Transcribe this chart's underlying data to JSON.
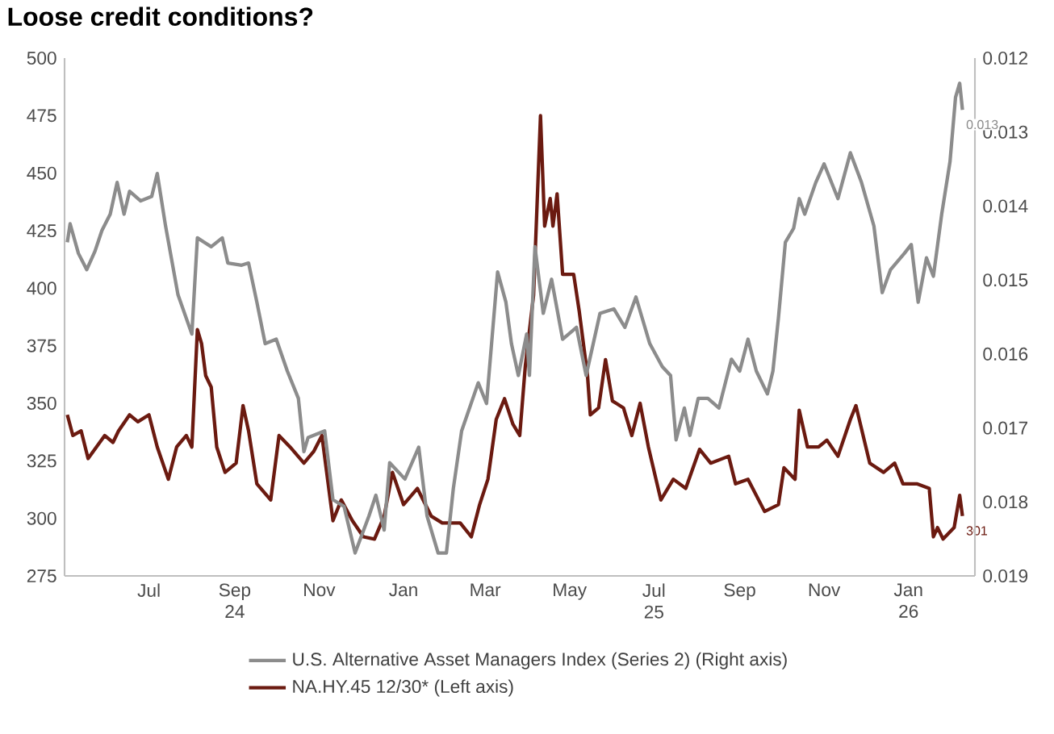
{
  "chart_data": {
    "type": "line",
    "title": "Loose credit conditions?",
    "xlim": [
      "2024-05-01",
      "2026-02-18"
    ],
    "xticks": [
      {
        "value": "2024-07-01",
        "label": "Jul"
      },
      {
        "value": "2024-09-01",
        "label": "Sep 24"
      },
      {
        "value": "2024-11-01",
        "label": "Nov"
      },
      {
        "value": "2025-01-01",
        "label": "Jan"
      },
      {
        "value": "2025-03-01",
        "label": "Mar"
      },
      {
        "value": "2025-05-01",
        "label": "May"
      },
      {
        "value": "2025-07-01",
        "label": "Jul 25"
      },
      {
        "value": "2025-09-01",
        "label": "Sep"
      },
      {
        "value": "2025-11-01",
        "label": "Nov"
      },
      {
        "value": "2026-01-01",
        "label": "Jan 26"
      }
    ],
    "ylim": [
      275,
      500
    ],
    "yticks": [
      275,
      300,
      325,
      350,
      375,
      400,
      425,
      450,
      475,
      500
    ],
    "y2lim": [
      0.019,
      0.012
    ],
    "y2ticks": [
      0.012,
      0.013,
      0.014,
      0.015,
      0.016,
      0.017,
      0.018,
      0.019
    ],
    "legend": "bottom",
    "series": [
      {
        "name": "U.S. Alternative Asset Managers Index (Series 2) (Right axis)",
        "color": "#8c8c8c",
        "axis": "y2",
        "x": [
          "2024-05-03",
          "2024-05-05",
          "2024-05-11",
          "2024-05-17",
          "2024-05-23",
          "2024-05-28",
          "2024-06-03",
          "2024-06-08",
          "2024-06-13",
          "2024-06-17",
          "2024-06-25",
          "2024-07-03",
          "2024-07-07",
          "2024-07-13",
          "2024-07-22",
          "2024-08-01",
          "2024-08-05",
          "2024-08-15",
          "2024-08-23",
          "2024-08-27",
          "2024-09-06",
          "2024-09-11",
          "2024-09-17",
          "2024-09-23",
          "2024-10-01",
          "2024-10-09",
          "2024-10-17",
          "2024-10-21",
          "2024-10-24",
          "2024-11-05",
          "2024-11-11",
          "2024-11-19",
          "2024-11-27",
          "2024-12-07",
          "2024-12-12",
          "2024-12-18",
          "2024-12-22",
          "2025-01-02",
          "2025-01-12",
          "2025-01-18",
          "2025-01-26",
          "2025-02-01",
          "2025-02-06",
          "2025-02-12",
          "2025-02-24",
          "2025-03-02",
          "2025-03-10",
          "2025-03-16",
          "2025-03-20",
          "2025-03-25",
          "2025-03-31",
          "2025-04-02",
          "2025-04-06",
          "2025-04-12",
          "2025-04-18",
          "2025-04-26",
          "2025-05-06",
          "2025-05-13",
          "2025-05-23",
          "2025-06-02",
          "2025-06-10",
          "2025-06-18",
          "2025-06-28",
          "2025-07-07",
          "2025-07-13",
          "2025-07-17",
          "2025-07-23",
          "2025-07-27",
          "2025-08-02",
          "2025-08-09",
          "2025-08-17",
          "2025-08-26",
          "2025-09-01",
          "2025-09-07",
          "2025-09-13",
          "2025-09-21",
          "2025-09-25",
          "2025-09-29",
          "2025-10-04",
          "2025-10-10",
          "2025-10-14",
          "2025-10-18",
          "2025-10-26",
          "2025-11-01",
          "2025-11-11",
          "2025-11-20",
          "2025-11-28",
          "2025-12-07",
          "2025-12-13",
          "2025-12-19",
          "2025-12-29",
          "2026-01-03",
          "2026-01-08",
          "2026-01-14",
          "2026-01-19",
          "2026-01-25",
          "2026-01-31",
          "2026-02-04",
          "2026-02-07",
          "2026-02-09"
        ],
        "values": [
          0.01449,
          0.01424,
          0.01464,
          0.01486,
          0.01461,
          0.01433,
          0.01411,
          0.01368,
          0.01411,
          0.0138,
          0.01393,
          0.01387,
          0.01356,
          0.01427,
          0.0152,
          0.01573,
          0.01443,
          0.01455,
          0.01443,
          0.01477,
          0.0148,
          0.01477,
          0.0153,
          0.01586,
          0.0158,
          0.01623,
          0.0166,
          0.01732,
          0.01713,
          0.01704,
          0.01797,
          0.01806,
          0.01869,
          0.01819,
          0.01791,
          0.01838,
          0.01747,
          0.01769,
          0.01726,
          0.01819,
          0.01869,
          0.01869,
          0.01782,
          0.01704,
          0.01639,
          0.01667,
          0.01489,
          0.0153,
          0.01586,
          0.01629,
          0.01573,
          0.01629,
          0.01455,
          0.01545,
          0.01499,
          0.0158,
          0.01564,
          0.01629,
          0.01545,
          0.01539,
          0.01564,
          0.01523,
          0.01586,
          0.01617,
          0.01629,
          0.01716,
          0.01673,
          0.0171,
          0.0166,
          0.0166,
          0.01673,
          0.01607,
          0.01623,
          0.0158,
          0.01623,
          0.01654,
          0.01623,
          0.01551,
          0.01449,
          0.0143,
          0.0139,
          0.01411,
          0.01368,
          0.01343,
          0.0139,
          0.01328,
          0.01368,
          0.01427,
          0.01517,
          0.01486,
          0.01464,
          0.01452,
          0.0153,
          0.0147,
          0.01495,
          0.01411,
          0.0134,
          0.01253,
          0.01234,
          0.0127
        ],
        "value_labels": [
          null,
          null,
          null,
          null,
          null,
          null,
          null,
          null,
          null,
          null,
          null,
          null,
          null,
          null,
          null,
          null,
          null,
          null,
          null,
          null,
          null,
          null,
          null,
          null,
          null,
          null,
          null,
          null,
          null,
          null,
          null,
          null,
          null,
          null,
          null,
          null,
          null,
          null,
          null,
          null,
          null,
          null,
          null,
          null,
          null,
          null,
          null,
          null,
          null,
          null,
          null,
          null,
          null,
          null,
          null,
          null,
          null,
          null,
          null,
          null,
          null,
          null,
          null,
          null,
          null,
          null,
          null,
          null,
          null,
          null,
          null,
          null,
          null,
          null,
          null,
          null,
          null,
          null,
          null,
          null,
          null,
          null,
          null,
          null,
          null,
          null,
          null,
          null,
          null,
          null,
          null,
          null,
          null,
          null,
          null,
          null,
          null,
          null,
          null,
          "0.013"
        ]
      },
      {
        "name": "NA.HY.45 12/30* (Left axis)",
        "color": "#6b1a10",
        "x": [
          "2024-05-03",
          "2024-05-07",
          "2024-05-13",
          "2024-05-18",
          "2024-05-24",
          "2024-05-30",
          "2024-06-05",
          "2024-06-09",
          "2024-06-17",
          "2024-06-23",
          "2024-07-01",
          "2024-07-07",
          "2024-07-15",
          "2024-07-21",
          "2024-07-28",
          "2024-08-01",
          "2024-08-05",
          "2024-08-08",
          "2024-08-11",
          "2024-08-15",
          "2024-08-19",
          "2024-08-25",
          "2024-09-02",
          "2024-09-07",
          "2024-09-11",
          "2024-09-17",
          "2024-09-27",
          "2024-10-03",
          "2024-10-11",
          "2024-10-21",
          "2024-10-28",
          "2024-11-03",
          "2024-11-11",
          "2024-11-17",
          "2024-11-25",
          "2024-12-03",
          "2024-12-11",
          "2024-12-18",
          "2024-12-24",
          "2025-01-01",
          "2025-01-11",
          "2025-01-21",
          "2025-01-29",
          "2025-02-11",
          "2025-02-19",
          "2025-02-25",
          "2025-03-03",
          "2025-03-09",
          "2025-03-15",
          "2025-03-21",
          "2025-03-26",
          "2025-03-30",
          "2025-04-05",
          "2025-04-10",
          "2025-04-13",
          "2025-04-17",
          "2025-04-19",
          "2025-04-22",
          "2025-04-26",
          "2025-05-04",
          "2025-05-08",
          "2025-05-14",
          "2025-05-16",
          "2025-05-22",
          "2025-05-27",
          "2025-06-01",
          "2025-06-09",
          "2025-06-15",
          "2025-06-21",
          "2025-06-27",
          "2025-07-06",
          "2025-07-15",
          "2025-07-24",
          "2025-08-03",
          "2025-08-11",
          "2025-08-24",
          "2025-08-29",
          "2025-09-07",
          "2025-09-19",
          "2025-09-29",
          "2025-10-03",
          "2025-10-11",
          "2025-10-14",
          "2025-10-20",
          "2025-10-28",
          "2025-11-03",
          "2025-11-11",
          "2025-11-20",
          "2025-11-24",
          "2025-12-04",
          "2025-12-14",
          "2025-12-22",
          "2025-12-28",
          "2026-01-07",
          "2026-01-16",
          "2026-01-19",
          "2026-01-22",
          "2026-01-26",
          "2026-02-03",
          "2026-02-07",
          "2026-02-09"
        ],
        "values": [
          345,
          336,
          338,
          326,
          331,
          336,
          333,
          338,
          345,
          342,
          345,
          331,
          317,
          331,
          336,
          331,
          382,
          376,
          362,
          357,
          331,
          320,
          324,
          349,
          338,
          315,
          308,
          336,
          331,
          324,
          329,
          336,
          299,
          308,
          299,
          292,
          291,
          301,
          320,
          306,
          313,
          301,
          298,
          298,
          292,
          306,
          317,
          343,
          352,
          341,
          336,
          366,
          397,
          475,
          427,
          439,
          427,
          441,
          406,
          406,
          390,
          362,
          345,
          348,
          369,
          351,
          348,
          336,
          350,
          331,
          308,
          317,
          313,
          330,
          324,
          327,
          315,
          317,
          303,
          306,
          322,
          317,
          347,
          331,
          331,
          334,
          327,
          343,
          349,
          324,
          320,
          324,
          315,
          315,
          313,
          292,
          296,
          291,
          296,
          310,
          301
        ],
        "value_labels": [
          null,
          null,
          null,
          null,
          null,
          null,
          null,
          null,
          null,
          null,
          null,
          null,
          null,
          null,
          null,
          null,
          null,
          null,
          null,
          null,
          null,
          null,
          null,
          null,
          null,
          null,
          null,
          null,
          null,
          null,
          null,
          null,
          null,
          null,
          null,
          null,
          null,
          null,
          null,
          null,
          null,
          null,
          null,
          null,
          null,
          null,
          null,
          null,
          null,
          null,
          null,
          null,
          null,
          null,
          null,
          null,
          null,
          null,
          null,
          null,
          null,
          null,
          null,
          null,
          null,
          null,
          null,
          null,
          null,
          null,
          null,
          null,
          null,
          null,
          null,
          null,
          null,
          null,
          null,
          null,
          null,
          null,
          null,
          null,
          null,
          null,
          null,
          null,
          null,
          null,
          null,
          null,
          null,
          null,
          null,
          null,
          null,
          null,
          null,
          null,
          "301"
        ]
      }
    ]
  }
}
